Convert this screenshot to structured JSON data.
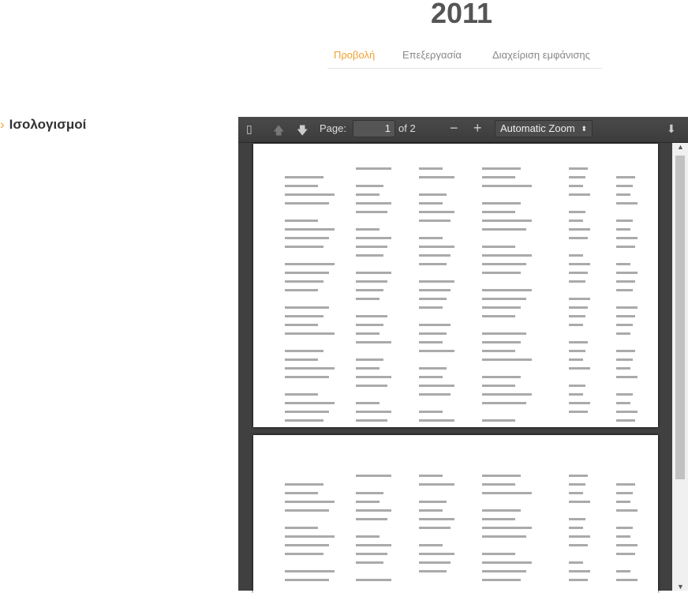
{
  "header": {
    "title": "2011"
  },
  "tabs": [
    {
      "label": "Προβολή",
      "active": true
    },
    {
      "label": "Επεξεργασία"
    },
    {
      "label": "Διαχείριση εμφάνισης"
    }
  ],
  "sidebar": {
    "item": "Ισολογισμοί"
  },
  "viewer": {
    "page_label": "Page:",
    "page": "1",
    "of": "of 2",
    "zoom": "Automatic Zoom",
    "zoom_out": "−",
    "zoom_in": "+"
  },
  "colors": {
    "accent": "#f0a030",
    "viewer_bg": "#404040"
  }
}
